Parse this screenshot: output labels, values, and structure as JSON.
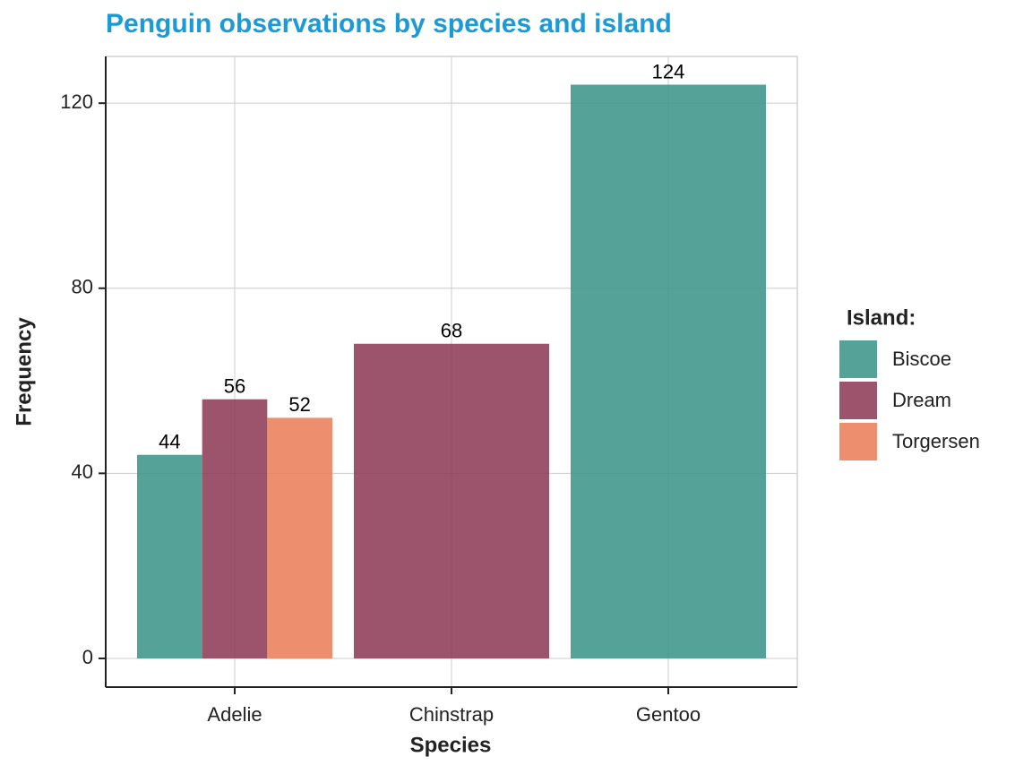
{
  "chart_data": {
    "type": "bar",
    "title": "Penguin observations by species and island",
    "x_label": "Species",
    "y_label": "Frequency",
    "legend_title": "Island:",
    "legend_position": "right",
    "categories": [
      "Adelie",
      "Chinstrap",
      "Gentoo"
    ],
    "series": [
      {
        "name": "Biscoe",
        "color": "#3d958b",
        "values": [
          44,
          null,
          124
        ]
      },
      {
        "name": "Dream",
        "color": "#8e3b58",
        "values": [
          56,
          68,
          null
        ]
      },
      {
        "name": "Torgersen",
        "color": "#ea7f5a",
        "values": [
          52,
          null,
          null
        ]
      }
    ],
    "ylim": [
      -6.2,
      130.1
    ],
    "yticks": [
      0,
      40,
      80,
      120
    ],
    "grid": true
  }
}
